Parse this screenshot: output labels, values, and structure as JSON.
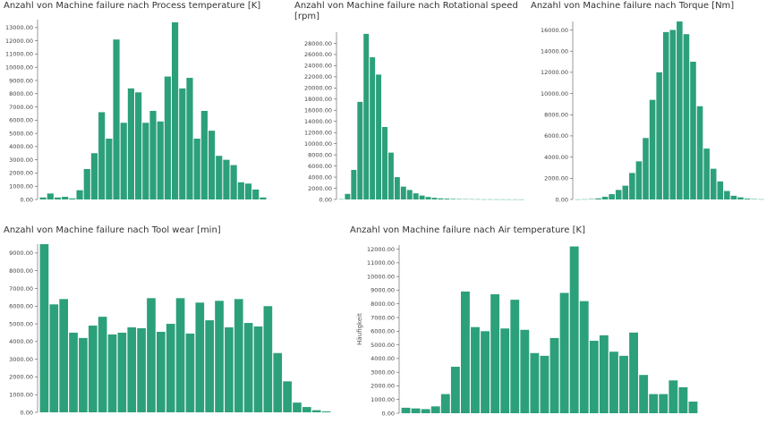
{
  "colors": {
    "bar": "#2ca07b",
    "axis": "#555555"
  },
  "chart_data": [
    {
      "type": "bar",
      "title": "Anzahl von Machine failure nach Process temperature [K]",
      "ylabel": "",
      "ylim": [
        0,
        13600
      ],
      "yticks": [
        0,
        1000,
        2000,
        3000,
        4000,
        5000,
        6000,
        7000,
        8000,
        9000,
        10000,
        11000,
        12000,
        13000
      ],
      "tick_labels": [
        "0.00",
        "1000.00",
        "2000.00",
        "3000.00",
        "4000.00",
        "5000.00",
        "6000.00",
        "7000.00",
        "8000.00",
        "9000.00",
        "10000.00",
        "11000.00",
        "12000.00",
        "13000.00"
      ],
      "values": [
        150,
        450,
        150,
        200,
        80,
        700,
        2300,
        3500,
        6600,
        4600,
        12100,
        5800,
        8400,
        8100,
        5800,
        6700,
        5900,
        9300,
        13400,
        8400,
        9200,
        4600,
        6700,
        5200,
        3300,
        3000,
        2600,
        1300,
        1200,
        750,
        150
      ]
    },
    {
      "type": "bar",
      "title": "Anzahl von Machine failure nach Rotational speed [rpm]",
      "ylabel": "",
      "ylim": [
        0,
        30000
      ],
      "yticks": [
        0,
        2000,
        4000,
        6000,
        8000,
        10000,
        12000,
        14000,
        16000,
        18000,
        20000,
        22000,
        24000,
        26000,
        28000
      ],
      "tick_labels": [
        "0.00",
        "2000.00",
        "4000.00",
        "6000.00",
        "8000.00",
        "10000.00",
        "12000.00",
        "14000.00",
        "16000.00",
        "18000.00",
        "20000.00",
        "22000.00",
        "24000.00",
        "26000.00",
        "28000.00"
      ],
      "values": [
        50,
        1000,
        5300,
        17500,
        29700,
        25500,
        22400,
        13000,
        8400,
        4000,
        2300,
        1700,
        1100,
        700,
        450,
        300,
        200,
        150,
        100,
        80,
        60,
        50,
        40,
        30,
        30,
        25,
        20,
        20,
        15,
        15
      ]
    },
    {
      "type": "bar",
      "title": "Anzahl von Machine failure nach Torque [Nm]",
      "ylabel": "",
      "ylim": [
        0,
        16800
      ],
      "yticks": [
        0,
        2000,
        4000,
        6000,
        8000,
        10000,
        12000,
        14000,
        16000
      ],
      "tick_labels": [
        "0.00",
        "2000.00",
        "4000.00",
        "6000.00",
        "8000.00",
        "10000.00",
        "12000.00",
        "14000.00",
        "16000.00"
      ],
      "values": [
        10,
        20,
        40,
        100,
        250,
        500,
        900,
        1300,
        2500,
        3600,
        5800,
        9400,
        12000,
        15800,
        16000,
        16800,
        15600,
        13000,
        8800,
        4800,
        2900,
        1700,
        800,
        350,
        200,
        80,
        40,
        20
      ]
    },
    {
      "type": "bar",
      "title": "Anzahl von Machine failure nach Tool wear [min]",
      "ylabel": "",
      "ylim": [
        0,
        9500
      ],
      "yticks": [
        0,
        1000,
        2000,
        3000,
        4000,
        5000,
        6000,
        7000,
        8000,
        9000
      ],
      "tick_labels": [
        "0.00",
        "1000.00",
        "2000.00",
        "3000.00",
        "4000.00",
        "5000.00",
        "6000.00",
        "7000.00",
        "8000.00",
        "9000.00"
      ],
      "values": [
        9500,
        6100,
        6400,
        4500,
        4200,
        4900,
        5400,
        4400,
        4500,
        4800,
        4750,
        6450,
        4550,
        5000,
        6450,
        4450,
        6200,
        5200,
        6300,
        4800,
        6400,
        5050,
        4850,
        6000,
        3350,
        1750,
        550,
        300,
        120,
        50
      ]
    },
    {
      "type": "bar",
      "title": "Anzahl von Machine failure nach Air temperature [K]",
      "ylabel": "Häufigkeit",
      "ylim": [
        0,
        12300
      ],
      "yticks": [
        0,
        1000,
        2000,
        3000,
        4000,
        5000,
        6000,
        7000,
        8000,
        9000,
        10000,
        11000,
        12000
      ],
      "tick_labels": [
        "0.00",
        "1000.00",
        "2000.00",
        "3000.00",
        "4000.00",
        "5000.00",
        "6000.00",
        "7000.00",
        "8000.00",
        "9000.00",
        "10000.00",
        "11000.00",
        "12000.00"
      ],
      "values": [
        400,
        350,
        300,
        500,
        1400,
        3400,
        8900,
        6300,
        6000,
        8700,
        6200,
        8300,
        6100,
        4400,
        4200,
        5500,
        8800,
        12200,
        8200,
        5300,
        5700,
        4500,
        4200,
        5900,
        2800,
        1400,
        1400,
        2400,
        1900,
        850
      ]
    }
  ]
}
